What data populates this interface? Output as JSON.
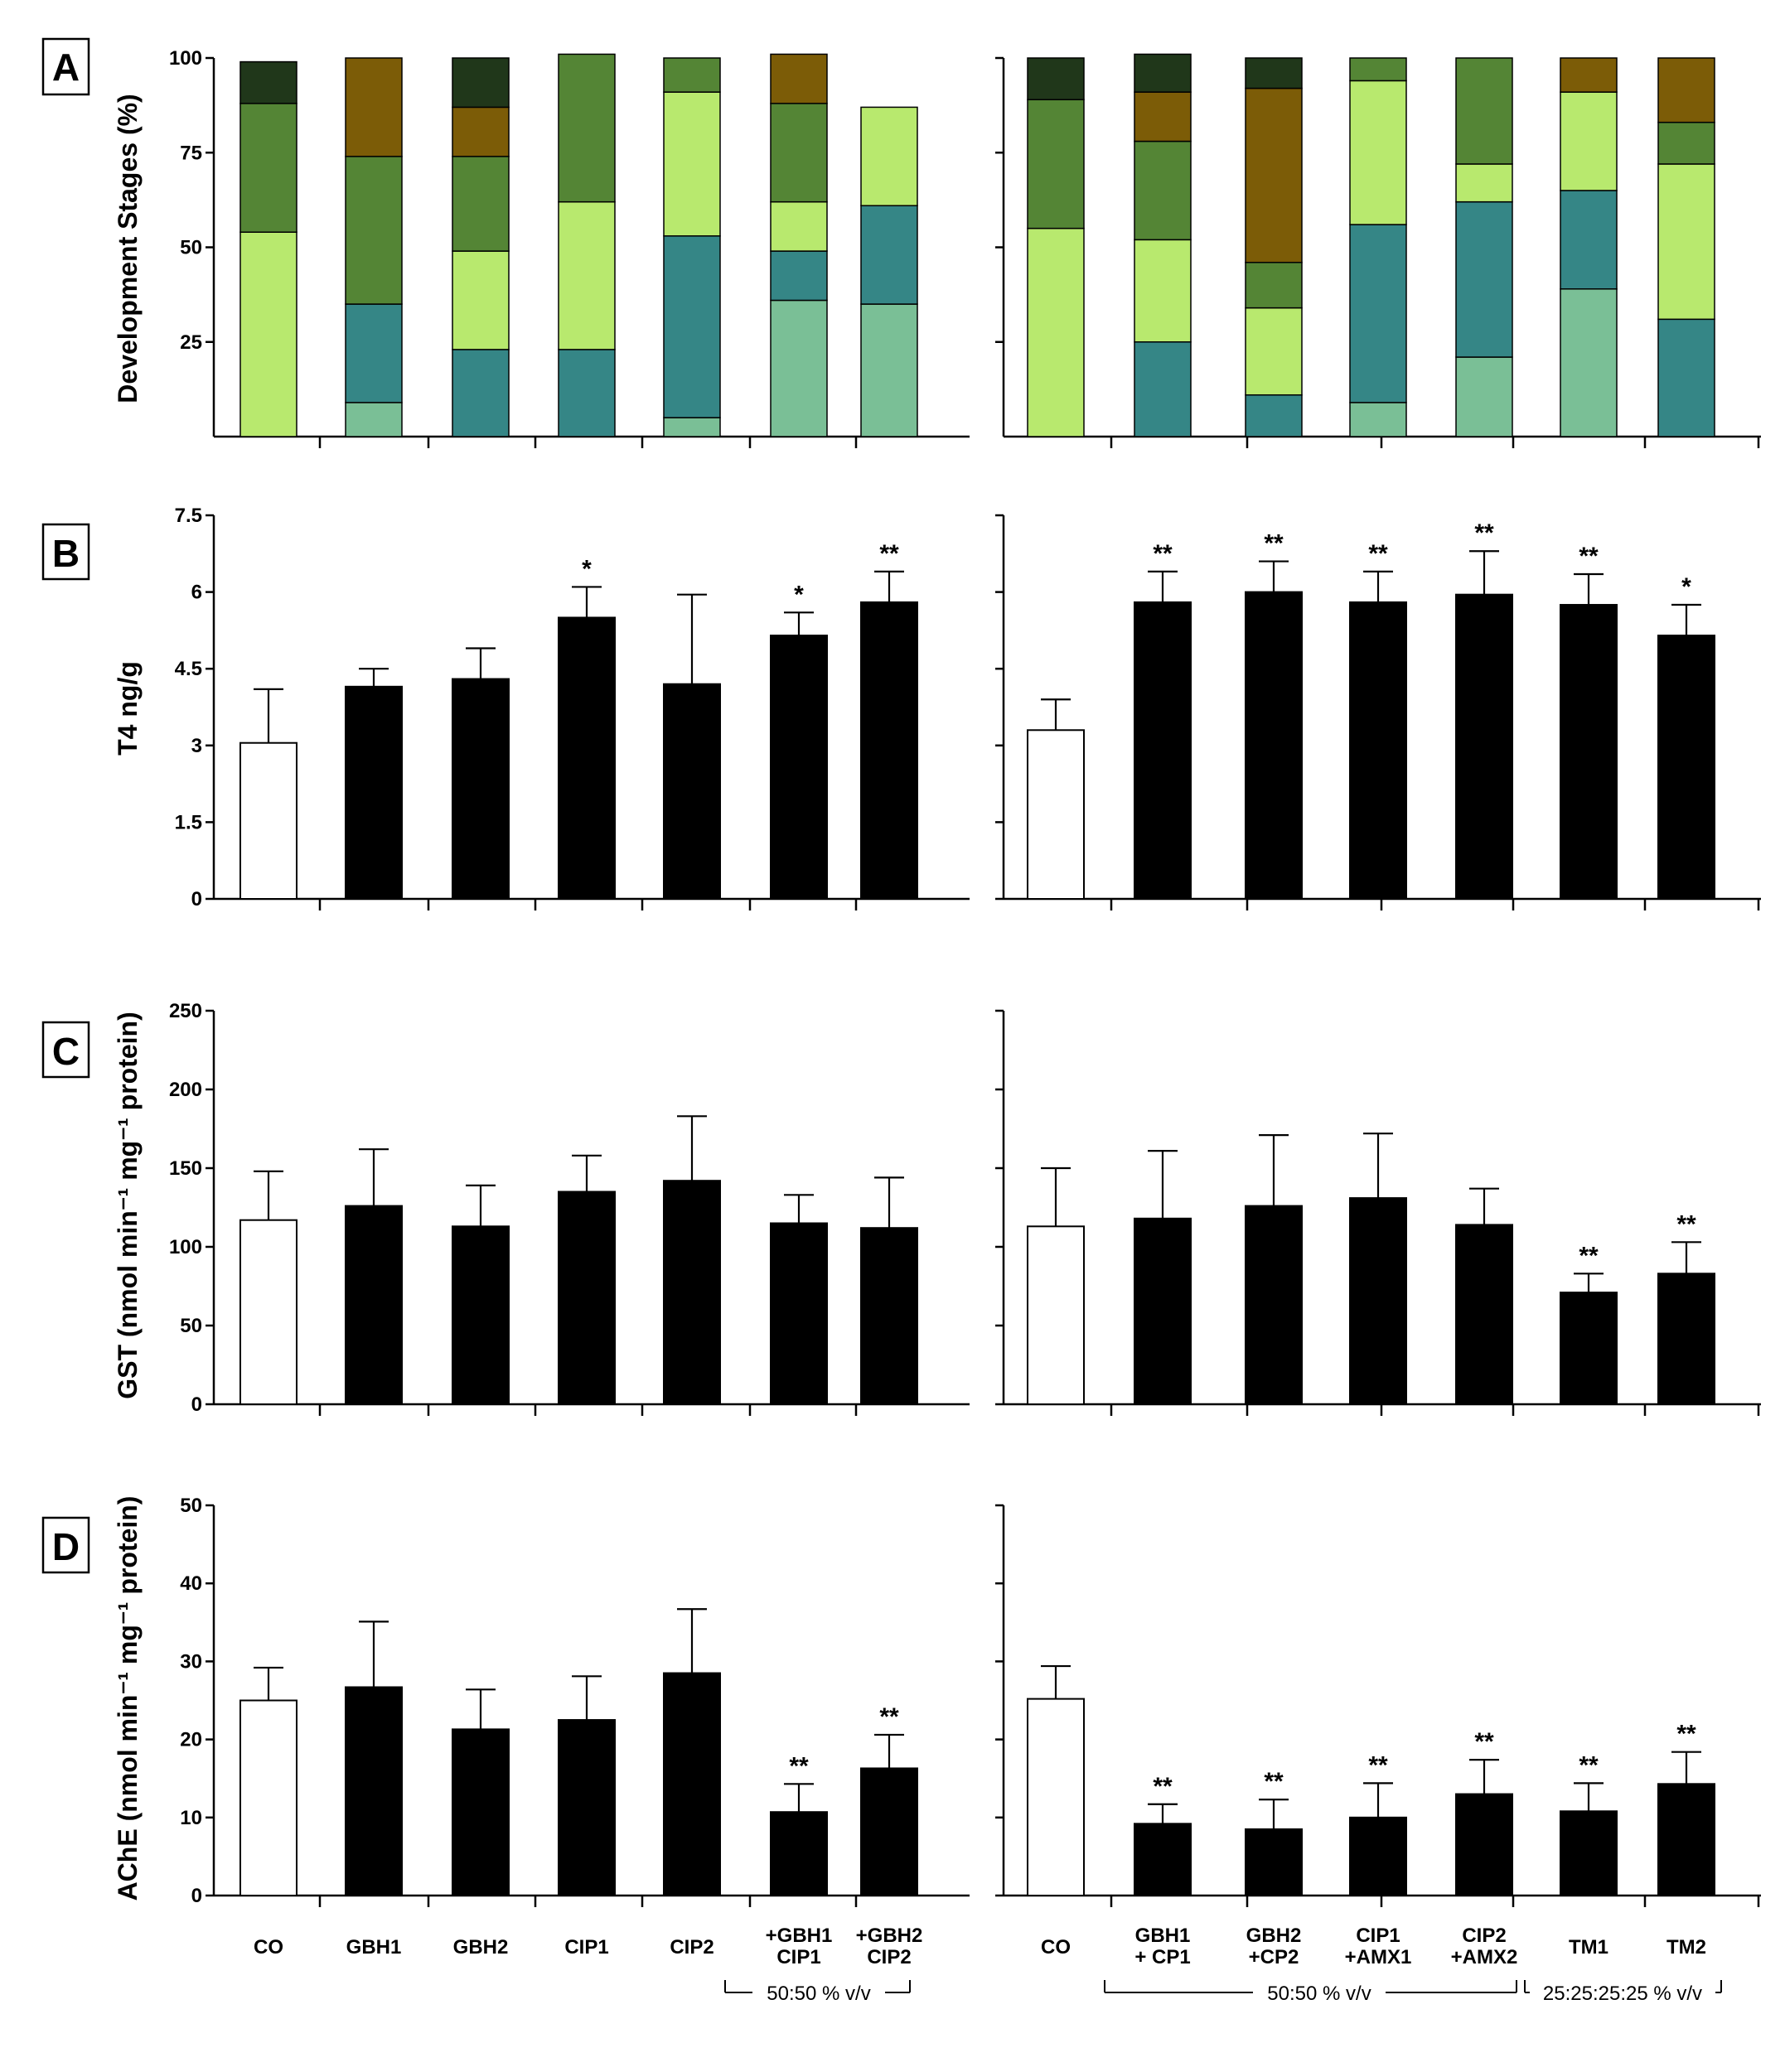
{
  "colors": {
    "stage_colors": [
      "#7abf96",
      "#358686",
      "#b8e96e",
      "#548535",
      "#7c5c07",
      "#20371a"
    ],
    "control_fill": "#ffffff",
    "treatment_fill": "#000000",
    "axis": "#000000"
  },
  "panels": {
    "A": {
      "letter": "A",
      "ylabel": "Development Stages (%)"
    },
    "B": {
      "letter": "B",
      "ylabel": "T4 ng/g"
    },
    "C": {
      "letter": "C",
      "ylabel": "GST (nmol min⁻¹ mg⁻¹ protein)"
    },
    "D": {
      "letter": "D",
      "ylabel": "AChE (nmol min⁻¹ mg⁻¹ protein)"
    }
  },
  "x_labels": {
    "left": [
      [
        "CO"
      ],
      [
        "GBH1"
      ],
      [
        "GBH2"
      ],
      [
        "CIP1"
      ],
      [
        "CIP2"
      ],
      [
        "+GBH1",
        "CIP1"
      ],
      [
        "+GBH2",
        "CIP2"
      ]
    ],
    "right": [
      [
        "CO"
      ],
      [
        "GBH1",
        "+ CP1"
      ],
      [
        "GBH2",
        "+CP2"
      ],
      [
        "CIP1",
        "+AMX1"
      ],
      [
        "CIP2",
        "+AMX2"
      ],
      [
        "TM1"
      ],
      [
        "TM2"
      ]
    ]
  },
  "brackets": {
    "left_group": "50:50 % v/v",
    "right_group_1": "50:50 % v/v",
    "right_group_2": "25:25:25:25 % v/v"
  },
  "chart_data": [
    {
      "panel": "A-left",
      "type": "bar",
      "stacked": true,
      "categories": [
        "CO",
        "GBH1",
        "GBH2",
        "CIP1",
        "CIP2",
        "GBH1+CIP1",
        "GBH2+CIP2"
      ],
      "ylim": [
        0,
        100
      ],
      "yticks": [
        25,
        50,
        75,
        100
      ],
      "series": [
        {
          "values": [
            0,
            9,
            0,
            0,
            5,
            36,
            35
          ]
        },
        {
          "values": [
            0,
            26,
            23,
            23,
            48,
            13,
            26
          ]
        },
        {
          "values": [
            54,
            0,
            26,
            39,
            38,
            13,
            26
          ]
        },
        {
          "values": [
            34,
            39,
            25,
            39,
            9,
            26,
            0
          ]
        },
        {
          "values": [
            0,
            26,
            13,
            0,
            0,
            13,
            0
          ]
        },
        {
          "values": [
            11,
            0,
            13,
            0,
            0,
            0,
            0
          ]
        }
      ]
    },
    {
      "panel": "A-right",
      "type": "bar",
      "stacked": true,
      "categories": [
        "CO",
        "GBH1+CP1",
        "GBH2+CP2",
        "CIP1+AMX1",
        "CIP2+AMX2",
        "TM1",
        "TM2"
      ],
      "ylim": [
        0,
        100
      ],
      "yticks": [
        25,
        50,
        75,
        100
      ],
      "series": [
        {
          "values": [
            0,
            0,
            0,
            9,
            21,
            39,
            0
          ]
        },
        {
          "values": [
            0,
            25,
            11,
            47,
            41,
            26,
            31
          ]
        },
        {
          "values": [
            55,
            27,
            23,
            38,
            10,
            26,
            41
          ]
        },
        {
          "values": [
            34,
            26,
            12,
            6,
            28,
            0,
            11
          ]
        },
        {
          "values": [
            0,
            13,
            46,
            0,
            0,
            9,
            17
          ]
        },
        {
          "values": [
            11,
            10,
            8,
            0,
            0,
            0,
            0
          ]
        }
      ]
    },
    {
      "panel": "B-left",
      "type": "bar",
      "ylabel": "T4 ng/g",
      "categories": [
        "CO",
        "GBH1",
        "GBH2",
        "CIP1",
        "CIP2",
        "GBH1+CIP1",
        "GBH2+CIP2"
      ],
      "ylim": [
        0,
        7.5
      ],
      "yticks": [
        0,
        1.5,
        3,
        4.5,
        6,
        7.5
      ],
      "values": [
        3.05,
        4.15,
        4.3,
        5.5,
        4.2,
        5.15,
        5.8
      ],
      "errors": [
        1.05,
        0.35,
        0.6,
        0.6,
        1.75,
        0.45,
        0.6
      ],
      "significance": [
        "",
        "",
        "",
        "*",
        "",
        "*",
        "**"
      ]
    },
    {
      "panel": "B-right",
      "type": "bar",
      "categories": [
        "CO",
        "GBH1+CP1",
        "GBH2+CP2",
        "CIP1+AMX1",
        "CIP2+AMX2",
        "TM1",
        "TM2"
      ],
      "ylim": [
        0,
        7.5
      ],
      "values": [
        3.3,
        5.8,
        6.0,
        5.8,
        5.95,
        5.75,
        5.15
      ],
      "errors": [
        0.6,
        0.6,
        0.6,
        0.6,
        0.85,
        0.6,
        0.6
      ],
      "significance": [
        "",
        "**",
        "**",
        "**",
        "**",
        "**",
        "*"
      ]
    },
    {
      "panel": "C-left",
      "type": "bar",
      "categories": [
        "CO",
        "GBH1",
        "GBH2",
        "CIP1",
        "CIP2",
        "GBH1+CIP1",
        "GBH2+CIP2"
      ],
      "ylim": [
        0,
        250
      ],
      "yticks": [
        0,
        50,
        100,
        150,
        200,
        250
      ],
      "values": [
        117,
        126,
        113,
        135,
        142,
        115,
        112
      ],
      "errors": [
        31,
        36,
        26,
        23,
        41,
        18,
        32
      ],
      "significance": [
        "",
        "",
        "",
        "",
        "",
        "",
        ""
      ]
    },
    {
      "panel": "C-right",
      "type": "bar",
      "categories": [
        "CO",
        "GBH1+CP1",
        "GBH2+CP2",
        "CIP1+AMX1",
        "CIP2+AMX2",
        "TM1",
        "TM2"
      ],
      "ylim": [
        0,
        250
      ],
      "values": [
        113,
        118,
        126,
        131,
        114,
        71,
        83
      ],
      "errors": [
        37,
        43,
        45,
        41,
        23,
        12,
        20
      ],
      "significance": [
        "",
        "",
        "",
        "",
        "",
        "**",
        "**"
      ]
    },
    {
      "panel": "D-left",
      "type": "bar",
      "categories": [
        "CO",
        "GBH1",
        "GBH2",
        "CIP1",
        "CIP2",
        "GBH1+CIP1",
        "GBH2+CIP2"
      ],
      "ylim": [
        0,
        50
      ],
      "yticks": [
        0,
        10,
        20,
        30,
        40,
        50
      ],
      "values": [
        25,
        26.7,
        21.3,
        22.5,
        28.5,
        10.7,
        16.3
      ],
      "errors": [
        4.2,
        8.4,
        5.1,
        5.6,
        8.2,
        3.6,
        4.3
      ],
      "significance": [
        "",
        "",
        "",
        "",
        "",
        "**",
        "**"
      ]
    },
    {
      "panel": "D-right",
      "type": "bar",
      "categories": [
        "CO",
        "GBH1+CP1",
        "GBH2+CP2",
        "CIP1+AMX1",
        "CIP2+AMX2",
        "TM1",
        "TM2"
      ],
      "ylim": [
        0,
        50
      ],
      "values": [
        25.2,
        9.2,
        8.5,
        10,
        13,
        10.8,
        14.3
      ],
      "errors": [
        4.2,
        2.5,
        3.8,
        4.4,
        4.4,
        3.6,
        4.1
      ],
      "significance": [
        "",
        "**",
        "**",
        "**",
        "**",
        "**",
        "**"
      ]
    }
  ]
}
